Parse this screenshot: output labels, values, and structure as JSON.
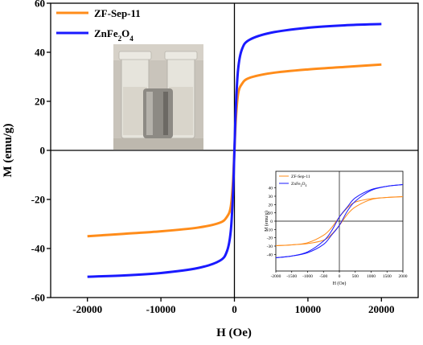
{
  "chart_data": [
    {
      "type": "line",
      "panel": "main",
      "xlabel": "H (Oe)",
      "ylabel": "M (emu/g)",
      "xlim": [
        -25000,
        25000
      ],
      "ylim": [
        -60,
        60
      ],
      "xticks": [
        -20000,
        -10000,
        0,
        10000,
        20000
      ],
      "yticks": [
        -60,
        -40,
        -20,
        0,
        20,
        40,
        60
      ],
      "xtick_labels": [
        "-20000",
        "-10000",
        "0",
        "10000",
        "20000"
      ],
      "ytick_labels": [
        "-60",
        "-40",
        "-20",
        "0",
        "20",
        "40",
        "60"
      ],
      "legend_position": "top-left",
      "grid": false,
      "series": [
        {
          "name": "ZF-Sep-11",
          "color": "#ff8c1a",
          "x": [
            -20000,
            -15000,
            -10000,
            -5000,
            -2000,
            -1000,
            -500,
            -200,
            0,
            200,
            500,
            1000,
            2000,
            5000,
            10000,
            15000,
            20000
          ],
          "y": [
            -35,
            -34,
            -33,
            -31.5,
            -29.5,
            -27,
            -23,
            -13,
            0,
            13,
            23,
            27,
            29.5,
            31.5,
            33,
            34,
            35
          ]
        },
        {
          "name": "ZnFe2O4",
          "color": "#1a1aff",
          "x": [
            -20000,
            -15000,
            -10000,
            -5000,
            -2000,
            -1000,
            -500,
            -200,
            0,
            200,
            500,
            1000,
            2000,
            5000,
            10000,
            15000,
            20000
          ],
          "y": [
            -51.5,
            -51,
            -50,
            -48,
            -45,
            -41,
            -33,
            -18,
            0,
            18,
            33,
            41,
            45,
            48,
            50,
            51,
            51.5
          ]
        }
      ]
    },
    {
      "type": "line",
      "panel": "inset",
      "xlabel": "H (Oe)",
      "ylabel": "M (emu/g)",
      "xlim": [
        -2000,
        2000
      ],
      "ylim": [
        -60,
        60
      ],
      "xticks": [
        -2000,
        -1500,
        -1000,
        -500,
        0,
        500,
        1000,
        1500,
        2000
      ],
      "yticks": [
        -40,
        -30,
        -20,
        -10,
        0,
        10,
        20,
        30,
        40
      ],
      "xtick_labels": [
        "-2000",
        "-1500",
        "-1000",
        "-500",
        "0",
        "500",
        "1000",
        "1500",
        "2000"
      ],
      "ytick_labels": [
        "-40",
        "-30",
        "-20",
        "-10",
        "0",
        "10",
        "20",
        "30",
        "40"
      ],
      "legend_position": "top-left",
      "series": [
        {
          "name": "ZF-Sep-11",
          "color": "#ff8c1a",
          "x": [
            -2000,
            -1500,
            -1000,
            -500,
            -250,
            0,
            250,
            500,
            1000,
            1500,
            2000
          ],
          "y": [
            -29.5,
            -28.5,
            -27,
            -23,
            -16,
            -5,
            8,
            17,
            26,
            28.5,
            29.5
          ]
        },
        {
          "name": "ZnFe2O4",
          "color": "#1a1aff",
          "x": [
            -2000,
            -1500,
            -1000,
            -500,
            -250,
            0,
            250,
            500,
            1000,
            1500,
            2000
          ],
          "y": [
            -44,
            -42,
            -38,
            -28,
            -17,
            -5,
            12,
            24,
            37,
            42,
            44
          ]
        }
      ]
    }
  ],
  "figure": {
    "photo": {
      "background": "#c9c4bb",
      "bottle_color": "#e6e4dc",
      "magnet_color": "#8d8a84"
    },
    "colors": {
      "axis": "#000000",
      "orange": "#ff8c1a",
      "blue": "#1a1aff"
    }
  }
}
